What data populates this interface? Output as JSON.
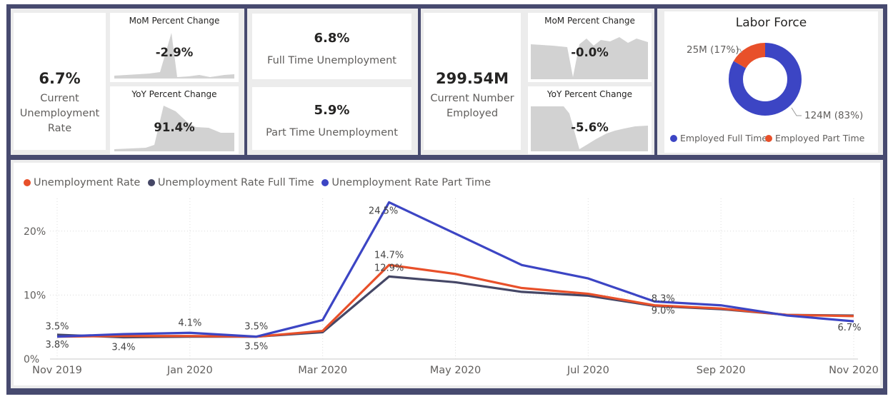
{
  "kpi_rate": {
    "value": "6.7%",
    "label": "Current Unemployment Rate"
  },
  "unemp_mom": {
    "title": "MoM Percent Change",
    "value": "-2.9%"
  },
  "unemp_yoy": {
    "title": "YoY Percent Change",
    "value": "91.4%"
  },
  "full_time": {
    "value": "6.8%",
    "label": "Full Time Unemployment"
  },
  "part_time": {
    "value": "5.9%",
    "label": "Part Time Unemployment"
  },
  "kpi_employed": {
    "value": "299.54M",
    "label": "Current Number Employed"
  },
  "emp_mom": {
    "title": "MoM Percent Change",
    "value": "-0.0%"
  },
  "emp_yoy": {
    "title": "YoY Percent Change",
    "value": "-5.6%"
  },
  "labor": {
    "title": "Labor Force",
    "label_part": "25M (17%)",
    "label_full": "124M (83%)",
    "legend_full": "Employed Full Time",
    "legend_part": "Employed Part Time"
  },
  "colors": {
    "rate": "#e8502a",
    "full_time": "#454766",
    "part_time": "#3c45c4",
    "sparkline": "#d2d2d2",
    "frame": "#474a6f"
  },
  "chart_data": [
    {
      "type": "line",
      "x": [
        "Nov 2019",
        "Dec 2019",
        "Jan 2020",
        "Feb 2020",
        "Mar 2020",
        "Apr 2020",
        "May 2020",
        "Jun 2020",
        "Jul 2020",
        "Aug 2020",
        "Sep 2020",
        "Oct 2020",
        "Nov 2020"
      ],
      "x_tick_labels": [
        "Nov 2019",
        "Jan 2020",
        "Mar 2020",
        "May 2020",
        "Jul 2020",
        "Sep 2020",
        "Nov 2020"
      ],
      "y_tick_labels": [
        "0%",
        "10%",
        "20%"
      ],
      "ylim": [
        0,
        26
      ],
      "grid": true,
      "legend_position": "top-left",
      "series": [
        {
          "name": "Unemployment Rate",
          "color": "#e8502a",
          "values": [
            3.5,
            3.6,
            3.6,
            3.5,
            4.4,
            14.7,
            13.3,
            11.1,
            10.2,
            8.4,
            7.9,
            6.9,
            6.7
          ]
        },
        {
          "name": "Unemployment Rate Full Time",
          "color": "#454766",
          "values": [
            3.8,
            3.4,
            3.5,
            3.5,
            4.2,
            12.9,
            12.0,
            10.5,
            9.9,
            8.3,
            7.8,
            6.9,
            6.8
          ]
        },
        {
          "name": "Unemployment Rate Part Time",
          "color": "#3c45c4",
          "values": [
            3.5,
            3.9,
            4.1,
            3.5,
            6.1,
            24.5,
            19.6,
            14.7,
            12.6,
            9.0,
            8.4,
            6.8,
            5.9
          ]
        }
      ],
      "data_labels": [
        {
          "series": 0,
          "index": 0,
          "text": "3.5%"
        },
        {
          "series": 1,
          "index": 0,
          "text": "3.8%"
        },
        {
          "series": 1,
          "index": 1,
          "text": "3.4%"
        },
        {
          "series": 2,
          "index": 2,
          "text": "4.1%"
        },
        {
          "series": 0,
          "index": 3,
          "text": "3.5%"
        },
        {
          "series": 1,
          "index": 3,
          "text": "3.5%"
        },
        {
          "series": 2,
          "index": 5,
          "text": "24.5%"
        },
        {
          "series": 0,
          "index": 5,
          "text": "14.7%"
        },
        {
          "series": 1,
          "index": 5,
          "text": "12.9%"
        },
        {
          "series": 1,
          "index": 9,
          "text": "8.3%"
        },
        {
          "series": 2,
          "index": 9,
          "text": "9.0%"
        },
        {
          "series": 0,
          "index": 12,
          "text": "6.7%"
        }
      ]
    },
    {
      "type": "pie",
      "categories": [
        "Employed Full Time",
        "Employed Part Time"
      ],
      "values": [
        124,
        25
      ],
      "colors": [
        "#3c45c4",
        "#e8502a"
      ]
    }
  ]
}
